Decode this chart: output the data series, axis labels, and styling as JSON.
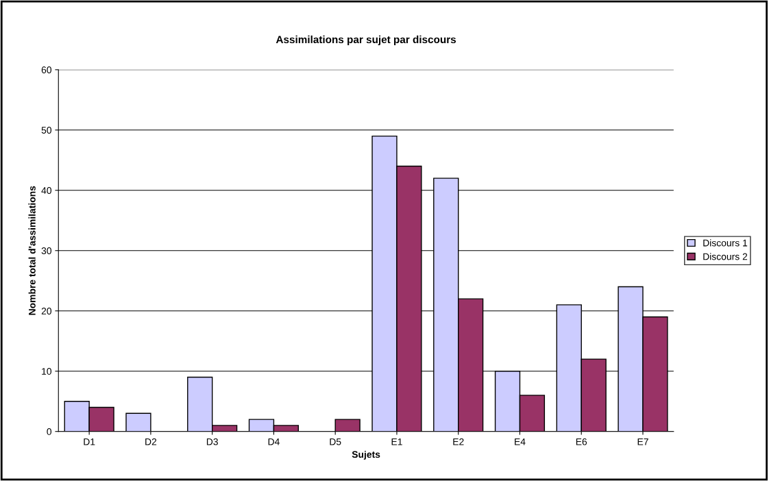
{
  "chart_data": {
    "type": "bar",
    "title": "Assimilations par sujet par discours",
    "xlabel": "Sujets",
    "ylabel": "Nombre total d'assimilations",
    "categories": [
      "D1",
      "D2",
      "D3",
      "D4",
      "D5",
      "E1",
      "E2",
      "E4",
      "E6",
      "E7"
    ],
    "series": [
      {
        "name": "Discours 1",
        "color": "#ccccff",
        "values": [
          5,
          3,
          9,
          2,
          0,
          49,
          42,
          10,
          21,
          24
        ]
      },
      {
        "name": "Discours 2",
        "color": "#993366",
        "values": [
          4,
          0,
          1,
          1,
          2,
          44,
          22,
          6,
          12,
          19
        ]
      }
    ],
    "ylim": [
      0,
      60
    ],
    "yticks": [
      0,
      10,
      20,
      30,
      40,
      50,
      60
    ],
    "grid": "y",
    "legend": "right"
  }
}
